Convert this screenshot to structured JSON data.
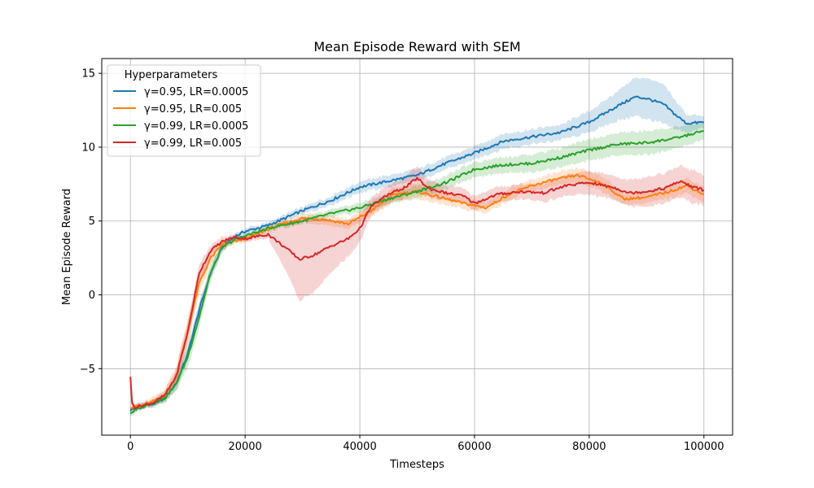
{
  "chart_data": {
    "type": "line",
    "title": "Mean Episode Reward with SEM",
    "xlabel": "Timesteps",
    "ylabel": "Mean Episode Reward",
    "xlim": [
      -5000,
      105000
    ],
    "ylim": [
      -9.5,
      16
    ],
    "xticks": [
      0,
      20000,
      40000,
      60000,
      80000,
      100000
    ],
    "xtick_labels": [
      "0",
      "20000",
      "40000",
      "60000",
      "80000",
      "100000"
    ],
    "yticks": [
      -5,
      0,
      5,
      10,
      15
    ],
    "ytick_labels": [
      "−5",
      "0",
      "5",
      "10",
      "15"
    ],
    "grid": true,
    "legend": {
      "title": "Hyperparameters",
      "position": "upper-left"
    },
    "series": [
      {
        "name": "γ=0.95, LR=0.0005",
        "color": "#1f77b4",
        "x": [
          0,
          2000,
          4000,
          6000,
          8000,
          10000,
          12000,
          14000,
          16000,
          18000,
          20000,
          24000,
          30000,
          35000,
          40000,
          45000,
          50000,
          55000,
          60000,
          65000,
          70000,
          75000,
          80000,
          85000,
          88000,
          90000,
          93000,
          95000,
          97000,
          100000
        ],
        "y": [
          -7.8,
          -7.5,
          -7.4,
          -7.0,
          -6.0,
          -4.0,
          -1.0,
          1.5,
          3.2,
          3.9,
          4.3,
          4.7,
          5.7,
          6.4,
          7.3,
          7.7,
          8.1,
          8.9,
          9.6,
          10.4,
          10.7,
          11.0,
          11.7,
          12.8,
          13.4,
          13.3,
          12.9,
          12.2,
          11.6,
          11.7
        ],
        "sem": [
          0.2,
          0.2,
          0.2,
          0.3,
          0.4,
          0.5,
          0.5,
          0.4,
          0.3,
          0.2,
          0.2,
          0.2,
          0.25,
          0.3,
          0.35,
          0.4,
          0.4,
          0.4,
          0.45,
          0.5,
          0.5,
          0.5,
          0.7,
          1.0,
          1.3,
          1.4,
          1.3,
          1.0,
          0.6,
          0.4
        ]
      },
      {
        "name": "γ=0.95, LR=0.005",
        "color": "#ff7f0e",
        "x": [
          0,
          2000,
          4000,
          6000,
          8000,
          10000,
          12000,
          14000,
          16000,
          18000,
          20000,
          25000,
          30000,
          34000,
          38000,
          42000,
          46000,
          50000,
          54000,
          58000,
          62000,
          66000,
          70000,
          74000,
          78000,
          82000,
          86000,
          90000,
          94000,
          97000,
          100000
        ],
        "y": [
          -7.6,
          -7.5,
          -7.2,
          -6.8,
          -5.5,
          -2.5,
          0.8,
          2.5,
          3.4,
          3.6,
          3.8,
          4.6,
          5.2,
          5.1,
          4.8,
          5.7,
          6.8,
          7.0,
          6.6,
          6.2,
          5.9,
          6.8,
          7.4,
          7.8,
          8.1,
          7.6,
          6.5,
          6.6,
          7.0,
          7.4,
          6.8
        ],
        "sem": [
          0.2,
          0.2,
          0.3,
          0.4,
          0.7,
          0.9,
          0.7,
          0.5,
          0.3,
          0.2,
          0.2,
          0.2,
          0.3,
          0.35,
          0.35,
          0.4,
          0.5,
          0.5,
          0.45,
          0.4,
          0.35,
          0.4,
          0.4,
          0.45,
          0.5,
          0.5,
          0.4,
          0.4,
          0.45,
          0.5,
          0.5
        ]
      },
      {
        "name": "γ=0.99, LR=0.0005",
        "color": "#2ca02c",
        "x": [
          0,
          2000,
          4000,
          6000,
          8000,
          10000,
          12000,
          14000,
          16000,
          18000,
          20000,
          25000,
          30000,
          35000,
          40000,
          45000,
          50000,
          55000,
          60000,
          65000,
          70000,
          75000,
          80000,
          85000,
          90000,
          95000,
          100000
        ],
        "y": [
          -8.0,
          -7.6,
          -7.3,
          -7.0,
          -6.0,
          -4.2,
          -1.5,
          1.5,
          3.2,
          3.7,
          4.0,
          4.6,
          5.0,
          5.5,
          5.9,
          6.5,
          7.0,
          7.6,
          8.5,
          8.8,
          8.9,
          9.3,
          9.8,
          10.2,
          10.3,
          10.6,
          11.1
        ],
        "sem": [
          0.2,
          0.2,
          0.2,
          0.3,
          0.5,
          0.7,
          0.7,
          0.5,
          0.3,
          0.2,
          0.2,
          0.2,
          0.2,
          0.25,
          0.3,
          0.35,
          0.4,
          0.45,
          0.5,
          0.55,
          0.6,
          0.65,
          0.7,
          0.75,
          0.8,
          0.75,
          0.6
        ]
      },
      {
        "name": "γ=0.99, LR=0.005",
        "color": "#d62728",
        "x": [
          0,
          300,
          800,
          2000,
          4000,
          6000,
          8000,
          10000,
          12000,
          14000,
          16000,
          18000,
          20000,
          24000,
          27000,
          29500,
          32000,
          35000,
          38000,
          40000,
          42000,
          45000,
          48000,
          50000,
          52000,
          55000,
          58000,
          60000,
          64000,
          68000,
          72000,
          76000,
          80000,
          84000,
          87000,
          90000,
          93000,
          96000,
          98000,
          100000
        ],
        "y": [
          -5.5,
          -7.4,
          -7.6,
          -7.5,
          -7.3,
          -6.8,
          -5.5,
          -2.5,
          1.5,
          3.0,
          3.6,
          3.9,
          3.8,
          4.1,
          3.2,
          2.4,
          2.7,
          3.3,
          3.8,
          4.5,
          6.0,
          6.8,
          7.3,
          7.9,
          7.2,
          6.9,
          6.7,
          6.2,
          6.8,
          7.0,
          6.9,
          7.4,
          7.6,
          7.3,
          6.9,
          7.0,
          7.2,
          7.7,
          7.3,
          7.1
        ],
        "sem": [
          0.1,
          0.2,
          0.2,
          0.2,
          0.2,
          0.3,
          0.5,
          0.7,
          0.6,
          0.4,
          0.3,
          0.2,
          0.2,
          0.3,
          1.5,
          2.8,
          2.5,
          1.8,
          1.2,
          0.9,
          0.6,
          0.6,
          0.7,
          0.8,
          0.6,
          0.5,
          0.5,
          0.5,
          0.5,
          0.5,
          0.6,
          0.7,
          0.8,
          0.8,
          0.9,
          1.0,
          1.0,
          1.1,
          1.1,
          1.0
        ]
      }
    ]
  }
}
